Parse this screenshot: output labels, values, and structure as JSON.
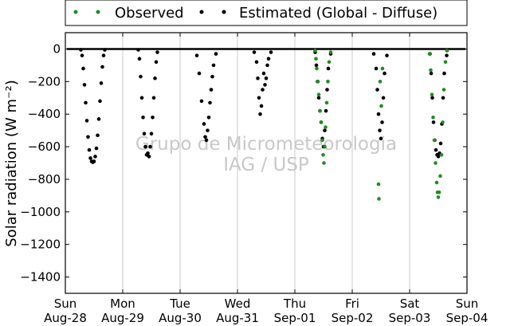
{
  "chart_data": {
    "type": "scatter",
    "title": "",
    "xlabel": "",
    "ylabel": "Solar radiation (W m⁻²)",
    "ylim": [
      -1500,
      100
    ],
    "yticks": [
      0,
      -200,
      -400,
      -600,
      -800,
      -1000,
      -1200,
      -1400
    ],
    "xlim": [
      "2016-08-28",
      "2016-09-04"
    ],
    "x_ticks": [
      {
        "day": "Sun",
        "date": "Aug-28"
      },
      {
        "day": "Mon",
        "date": "Aug-29"
      },
      {
        "day": "Tue",
        "date": "Aug-30"
      },
      {
        "day": "Wed",
        "date": "Aug-31"
      },
      {
        "day": "Thu",
        "date": "Sep-01"
      },
      {
        "day": "Fri",
        "date": "Sep-02"
      },
      {
        "day": "Sat",
        "date": "Sep-03"
      },
      {
        "day": "Sun",
        "date": "Sep-04"
      }
    ],
    "grid": "vertical",
    "legend": {
      "placement": "top",
      "entries": [
        "Observed",
        "Estimated (Global - Diffuse)"
      ]
    },
    "watermark": [
      "Grupo de Micrometeorologia",
      "IAG / USP"
    ],
    "colors": {
      "observed": "#228b22",
      "estimated": "#000000"
    },
    "series": [
      {
        "name": "Observed",
        "points": [
          [
            "2016-09-01 08:30",
            -10
          ],
          [
            "2016-09-01 08:50",
            -60
          ],
          [
            "2016-09-01 09:10",
            -120
          ],
          [
            "2016-09-01 09:40",
            -200
          ],
          [
            "2016-09-01 10:00",
            -280
          ],
          [
            "2016-09-01 10:30",
            -380
          ],
          [
            "2016-09-01 11:00",
            -450
          ],
          [
            "2016-09-01 11:30",
            -560
          ],
          [
            "2016-09-01 11:50",
            -650
          ],
          [
            "2016-09-01 12:10",
            -700
          ],
          [
            "2016-09-01 12:30",
            -600
          ],
          [
            "2016-09-01 12:50",
            -480
          ],
          [
            "2016-09-01 13:20",
            -330
          ],
          [
            "2016-09-01 13:50",
            -200
          ],
          [
            "2016-09-01 14:20",
            -80
          ],
          [
            "2016-09-01 15:00",
            -20
          ],
          [
            "2016-09-02 11:00",
            -830
          ],
          [
            "2016-09-02 11:10",
            -920
          ],
          [
            "2016-09-02 11:40",
            -200
          ],
          [
            "2016-09-02 12:10",
            -350
          ],
          [
            "2016-09-02 12:40",
            -120
          ],
          [
            "2016-09-03 08:20",
            -30
          ],
          [
            "2016-09-03 08:50",
            -130
          ],
          [
            "2016-09-03 09:20",
            -280
          ],
          [
            "2016-09-03 09:50",
            -420
          ],
          [
            "2016-09-03 10:20",
            -560
          ],
          [
            "2016-09-03 10:50",
            -700
          ],
          [
            "2016-09-03 11:20",
            -820
          ],
          [
            "2016-09-03 11:40",
            -880
          ],
          [
            "2016-09-03 12:00",
            -910
          ],
          [
            "2016-09-03 12:20",
            -880
          ],
          [
            "2016-09-03 12:50",
            -780
          ],
          [
            "2016-09-03 13:20",
            -650
          ],
          [
            "2016-09-03 13:50",
            -450
          ],
          [
            "2016-09-03 14:20",
            -250
          ],
          [
            "2016-09-03 15:00",
            -80
          ],
          [
            "2016-09-03 15:40",
            -10
          ]
        ]
      },
      {
        "name": "Estimated (Global - Diffuse)",
        "points": [
          [
            "2016-08-28 06:30",
            -5
          ],
          [
            "2016-08-28 07:00",
            -40
          ],
          [
            "2016-08-28 07:30",
            -120
          ],
          [
            "2016-08-28 08:00",
            -220
          ],
          [
            "2016-08-28 08:30",
            -330
          ],
          [
            "2016-08-28 09:00",
            -440
          ],
          [
            "2016-08-28 09:30",
            -540
          ],
          [
            "2016-08-28 10:00",
            -620
          ],
          [
            "2016-08-28 10:30",
            -670
          ],
          [
            "2016-08-28 11:00",
            -690
          ],
          [
            "2016-08-28 11:30",
            -695
          ],
          [
            "2016-08-28 12:00",
            -690
          ],
          [
            "2016-08-28 12:30",
            -660
          ],
          [
            "2016-08-28 13:00",
            -610
          ],
          [
            "2016-08-28 13:30",
            -530
          ],
          [
            "2016-08-28 14:00",
            -430
          ],
          [
            "2016-08-28 14:30",
            -320
          ],
          [
            "2016-08-28 15:00",
            -210
          ],
          [
            "2016-08-28 15:30",
            -110
          ],
          [
            "2016-08-28 16:00",
            -40
          ],
          [
            "2016-08-28 16:30",
            -5
          ],
          [
            "2016-08-29 06:30",
            -5
          ],
          [
            "2016-08-29 07:00",
            -60
          ],
          [
            "2016-08-29 07:30",
            -170
          ],
          [
            "2016-08-29 08:00",
            -300
          ],
          [
            "2016-08-29 08:30",
            -420
          ],
          [
            "2016-08-29 09:00",
            -520
          ],
          [
            "2016-08-29 09:30",
            -600
          ],
          [
            "2016-08-29 10:00",
            -650
          ],
          [
            "2016-08-29 10:30",
            -640
          ],
          [
            "2016-08-29 11:00",
            -660
          ],
          [
            "2016-08-29 11:30",
            -600
          ],
          [
            "2016-08-29 12:00",
            -520
          ],
          [
            "2016-08-29 12:30",
            -420
          ],
          [
            "2016-08-29 13:00",
            -300
          ],
          [
            "2016-08-29 13:30",
            -180
          ],
          [
            "2016-08-29 14:00",
            -80
          ],
          [
            "2016-08-29 14:30",
            -20
          ],
          [
            "2016-08-30 07:00",
            -40
          ],
          [
            "2016-08-30 08:00",
            -150
          ],
          [
            "2016-08-30 09:00",
            -320
          ],
          [
            "2016-08-30 10:00",
            -460
          ],
          [
            "2016-08-30 10:30",
            -540
          ],
          [
            "2016-08-30 11:00",
            -560
          ],
          [
            "2016-08-30 11:30",
            -500
          ],
          [
            "2016-08-30 12:00",
            -420
          ],
          [
            "2016-08-30 12:30",
            -330
          ],
          [
            "2016-08-30 13:00",
            -250
          ],
          [
            "2016-08-30 13:30",
            -170
          ],
          [
            "2016-08-30 14:00",
            -100
          ],
          [
            "2016-08-30 15:00",
            -30
          ],
          [
            "2016-08-31 07:00",
            -20
          ],
          [
            "2016-08-31 08:00",
            -80
          ],
          [
            "2016-08-31 08:30",
            -180
          ],
          [
            "2016-08-31 09:00",
            -300
          ],
          [
            "2016-08-31 09:30",
            -400
          ],
          [
            "2016-08-31 10:00",
            -350
          ],
          [
            "2016-08-31 10:30",
            -250
          ],
          [
            "2016-08-31 11:00",
            -150
          ],
          [
            "2016-08-31 11:30",
            -220
          ],
          [
            "2016-08-31 12:00",
            -180
          ],
          [
            "2016-08-31 12:30",
            -100
          ],
          [
            "2016-08-31 13:00",
            -60
          ],
          [
            "2016-08-31 14:00",
            -20
          ],
          [
            "2016-09-01 08:30",
            -20
          ],
          [
            "2016-09-01 09:00",
            -100
          ],
          [
            "2016-09-01 09:30",
            -200
          ],
          [
            "2016-09-01 10:00",
            -300
          ],
          [
            "2016-09-01 10:30",
            -380
          ],
          [
            "2016-09-01 11:00",
            -450
          ],
          [
            "2016-09-01 11:30",
            -550
          ],
          [
            "2016-09-01 12:00",
            -600
          ],
          [
            "2016-09-01 12:30",
            -500
          ],
          [
            "2016-09-01 13:00",
            -380
          ],
          [
            "2016-09-01 13:30",
            -250
          ],
          [
            "2016-09-01 14:00",
            -120
          ],
          [
            "2016-09-01 15:00",
            -30
          ],
          [
            "2016-09-02 09:00",
            -30
          ],
          [
            "2016-09-02 10:00",
            -120
          ],
          [
            "2016-09-02 10:30",
            -250
          ],
          [
            "2016-09-02 11:00",
            -400
          ],
          [
            "2016-09-02 11:30",
            -500
          ],
          [
            "2016-09-02 12:00",
            -550
          ],
          [
            "2016-09-02 12:30",
            -450
          ],
          [
            "2016-09-02 13:00",
            -300
          ],
          [
            "2016-09-02 13:30",
            -150
          ],
          [
            "2016-09-02 14:30",
            -40
          ],
          [
            "2016-09-03 08:30",
            -30
          ],
          [
            "2016-09-03 09:00",
            -150
          ],
          [
            "2016-09-03 09:30",
            -300
          ],
          [
            "2016-09-03 10:00",
            -450
          ],
          [
            "2016-09-03 10:30",
            -560
          ],
          [
            "2016-09-03 11:00",
            -620
          ],
          [
            "2016-09-03 11:30",
            -650
          ],
          [
            "2016-09-03 12:00",
            -660
          ],
          [
            "2016-09-03 12:30",
            -640
          ],
          [
            "2016-09-03 13:00",
            -580
          ],
          [
            "2016-09-03 13:30",
            -460
          ],
          [
            "2016-09-03 14:00",
            -300
          ],
          [
            "2016-09-03 14:30",
            -150
          ],
          [
            "2016-09-03 15:30",
            -40
          ]
        ]
      }
    ]
  }
}
